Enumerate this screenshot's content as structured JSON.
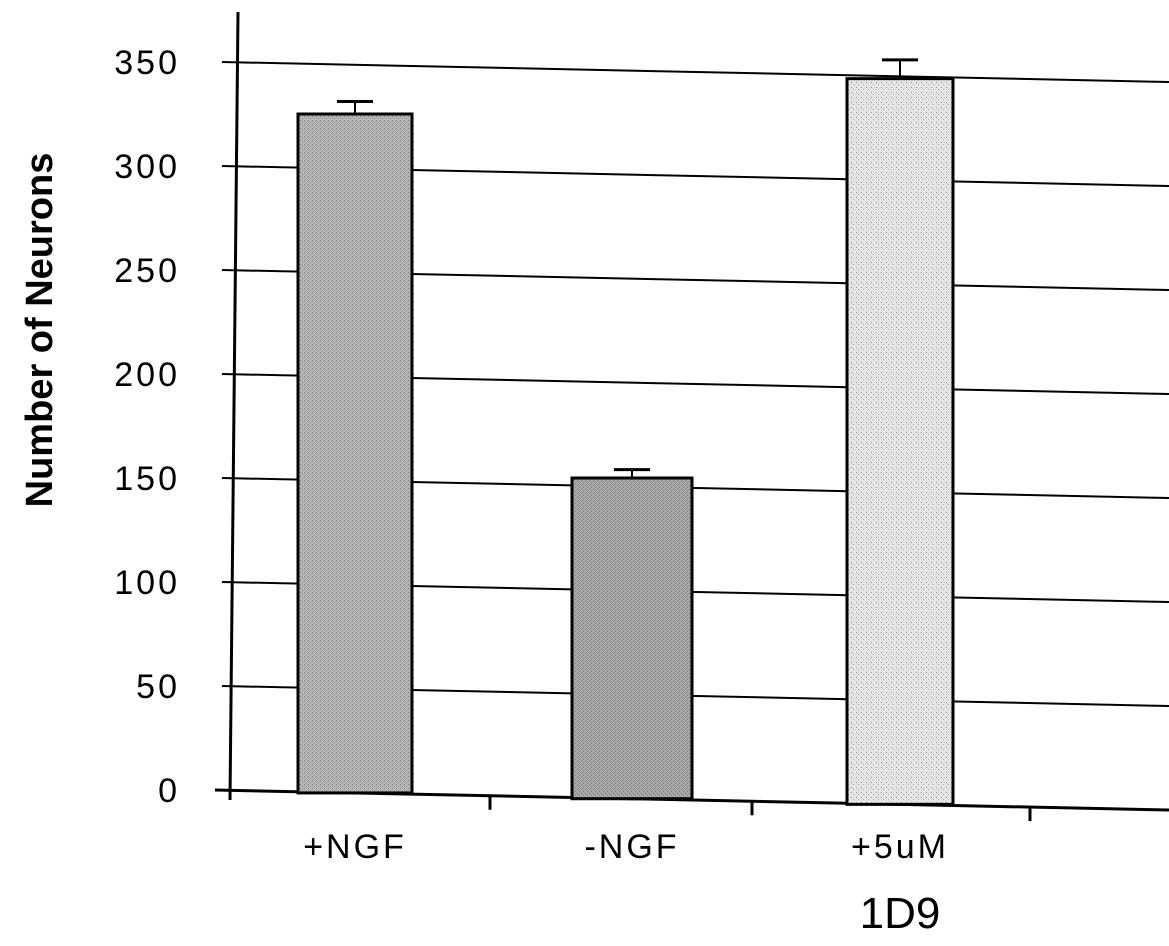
{
  "chart_data": {
    "type": "bar",
    "title": "",
    "xlabel": "",
    "ylabel": "Number of Neurons",
    "ylim": [
      0,
      350
    ],
    "yticks": [
      0,
      50,
      100,
      150,
      200,
      250,
      300,
      350
    ],
    "grid": true,
    "legend": "none",
    "categories": [
      {
        "line1": "+NGF",
        "line2": ""
      },
      {
        "line1": "-NGF",
        "line2": ""
      },
      {
        "line1": "+5uM",
        "line2": "1D9"
      }
    ],
    "values": [
      325,
      150,
      342
    ],
    "error": [
      6,
      4,
      9
    ],
    "bar_colors": [
      "#b8b8b8",
      "#a9a9a9",
      "#dcdcdc"
    ]
  }
}
